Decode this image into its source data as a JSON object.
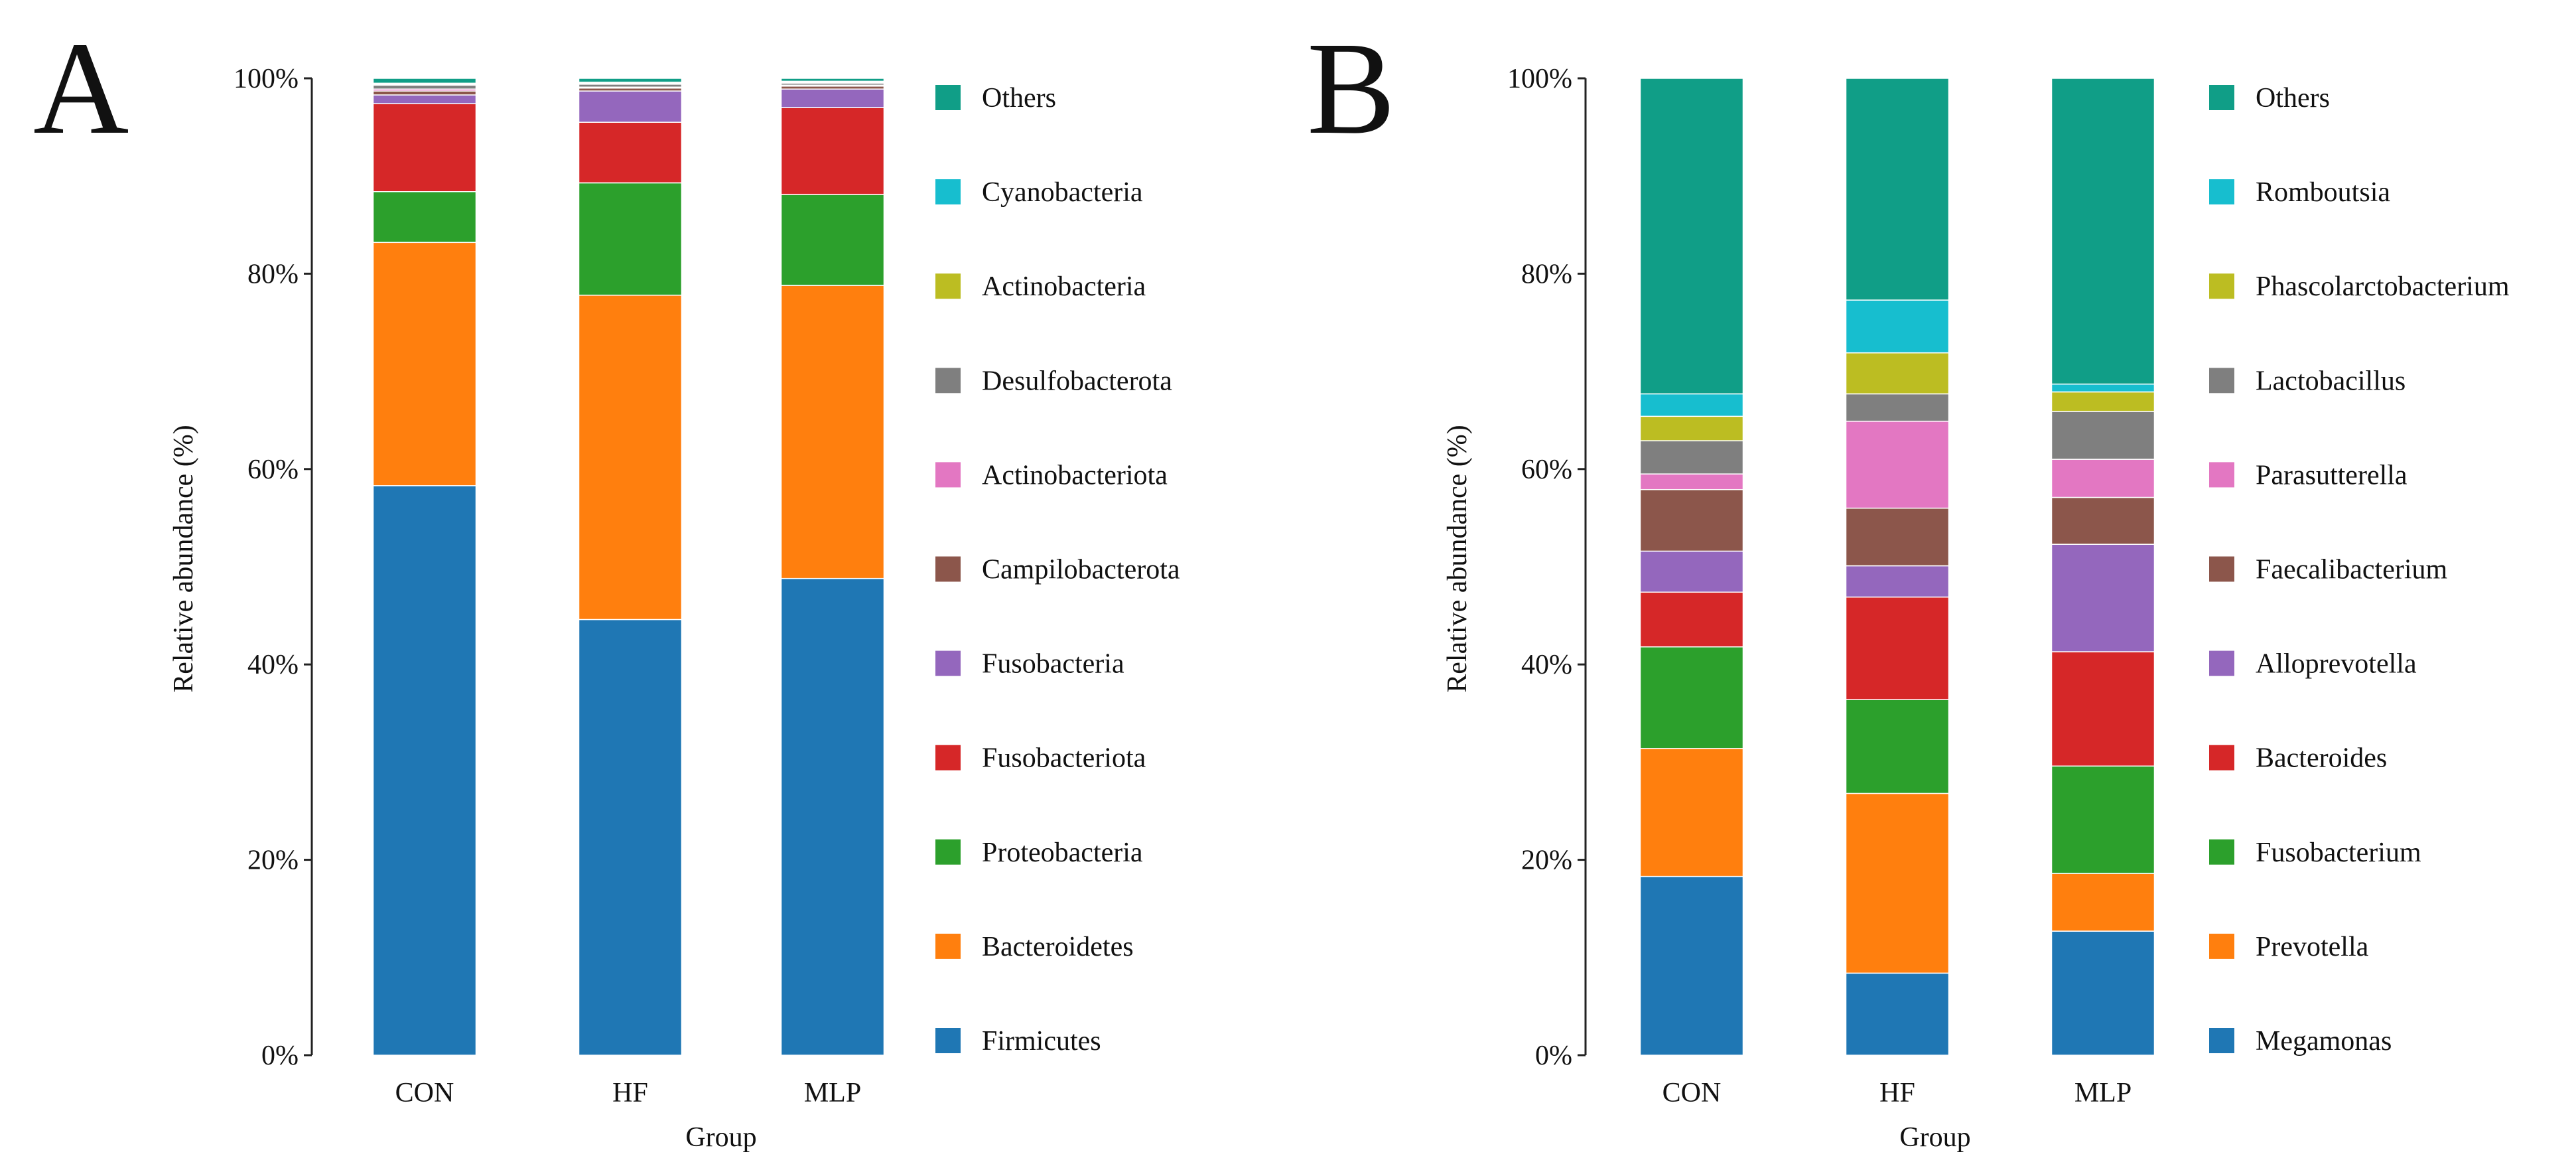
{
  "figure": {
    "colors": {
      "Firmicutes": "#1f77b4",
      "Bacteroidetes": "#ff7f0e",
      "Proteobacteria": "#2ca02c",
      "Fusobacteriota": "#d62728",
      "Fusobacteria": "#9467bd",
      "Campilobacterota": "#8c564b",
      "Actinobacteriota": "#e377c2",
      "Desulfobacterota": "#7f7f7f",
      "Actinobacteria": "#bcbd22",
      "Cyanobacteria": "#17becf",
      "Others": "#109e87",
      "Megamonas": "#1f77b4",
      "Prevotella": "#ff7f0e",
      "Fusobacterium": "#2ca02c",
      "Bacteroides": "#d62728",
      "Alloprevotella": "#9467bd",
      "Faecalibacterium": "#8c564b",
      "Parasutterella": "#e377c2",
      "Lactobacillus": "#7f7f7f",
      "Phascolarctobacterium": "#bcbd22",
      "Romboutsia": "#17becf"
    }
  },
  "chart_data": [
    {
      "panel": "A",
      "type": "bar",
      "stacked": true,
      "xlabel": "Group",
      "ylabel": "Relative abundance (%)",
      "ylim": [
        0,
        100
      ],
      "yticks": [
        "0%",
        "20%",
        "40%",
        "60%",
        "80%",
        "100%"
      ],
      "categories": [
        "CON",
        "HF",
        "MLP"
      ],
      "legend_order": [
        "Others",
        "Cyanobacteria",
        "Actinobacteria",
        "Desulfobacterota",
        "Actinobacteriota",
        "Campilobacterota",
        "Fusobacteria",
        "Fusobacteriota",
        "Proteobacteria",
        "Bacteroidetes",
        "Firmicutes"
      ],
      "series": [
        {
          "name": "Firmicutes",
          "values": [
            58.3,
            44.6,
            48.8
          ]
        },
        {
          "name": "Bacteroidetes",
          "values": [
            24.9,
            33.2,
            30.0
          ]
        },
        {
          "name": "Proteobacteria",
          "values": [
            5.2,
            11.5,
            9.3
          ]
        },
        {
          "name": "Fusobacteriota",
          "values": [
            9.0,
            6.2,
            8.9
          ]
        },
        {
          "name": "Fusobacteria",
          "values": [
            0.9,
            3.2,
            1.9
          ]
        },
        {
          "name": "Campilobacterota",
          "values": [
            0.4,
            0.3,
            0.3
          ]
        },
        {
          "name": "Actinobacteriota",
          "values": [
            0.2,
            0.1,
            0.1
          ]
        },
        {
          "name": "Desulfobacterota",
          "values": [
            0.4,
            0.3,
            0.2
          ]
        },
        {
          "name": "Actinobacteria",
          "values": [
            0.1,
            0.1,
            0.1
          ]
        },
        {
          "name": "Cyanobacteria",
          "values": [
            0.1,
            0.1,
            0.1
          ]
        },
        {
          "name": "Others",
          "values": [
            0.5,
            0.4,
            0.3
          ]
        }
      ]
    },
    {
      "panel": "B",
      "type": "bar",
      "stacked": true,
      "xlabel": "Group",
      "ylabel": "Relative abundance (%)",
      "ylim": [
        0,
        100
      ],
      "yticks": [
        "0%",
        "20%",
        "40%",
        "60%",
        "80%",
        "100%"
      ],
      "categories": [
        "CON",
        "HF",
        "MLP"
      ],
      "legend_order": [
        "Others",
        "Romboutsia",
        "Phascolarctobacterium",
        "Lactobacillus",
        "Parasutterella",
        "Faecalibacterium",
        "Alloprevotella",
        "Bacteroides",
        "Fusobacterium",
        "Prevotella",
        "Megamonas"
      ],
      "series": [
        {
          "name": "Megamonas",
          "values": [
            18.3,
            8.4,
            12.7
          ]
        },
        {
          "name": "Prevotella",
          "values": [
            13.1,
            18.4,
            5.9
          ]
        },
        {
          "name": "Fusobacterium",
          "values": [
            10.4,
            9.6,
            11.0
          ]
        },
        {
          "name": "Bacteroides",
          "values": [
            5.6,
            10.5,
            11.7
          ]
        },
        {
          "name": "Alloprevotella",
          "values": [
            4.2,
            3.2,
            11.0
          ]
        },
        {
          "name": "Faecalibacterium",
          "values": [
            6.3,
            5.9,
            4.8
          ]
        },
        {
          "name": "Parasutterella",
          "values": [
            1.6,
            8.9,
            3.9
          ]
        },
        {
          "name": "Lactobacillus",
          "values": [
            3.4,
            2.8,
            4.9
          ]
        },
        {
          "name": "Phascolarctobacterium",
          "values": [
            2.5,
            4.2,
            2.0
          ]
        },
        {
          "name": "Romboutsia",
          "values": [
            2.3,
            5.4,
            0.8
          ]
        },
        {
          "name": "Others",
          "values": [
            32.3,
            22.7,
            31.3
          ]
        }
      ]
    }
  ]
}
